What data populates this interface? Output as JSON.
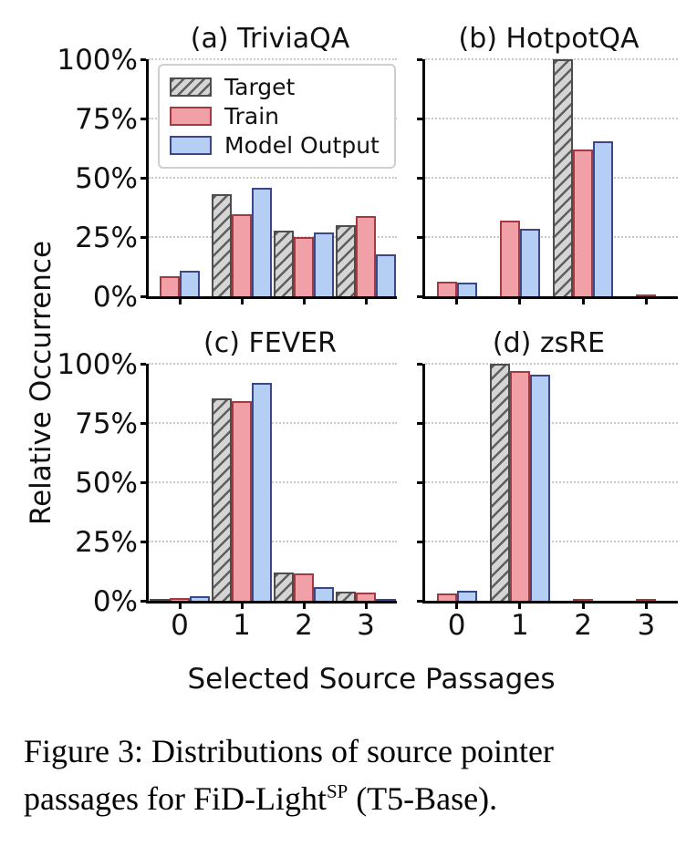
{
  "figure": {
    "ylabel": "Relative Occurrence",
    "xlabel": "Selected Source Passages"
  },
  "legend": {
    "items": [
      {
        "label": "Target"
      },
      {
        "label": "Train"
      },
      {
        "label": "Model Output"
      }
    ]
  },
  "series_styles": {
    "Target": {
      "fill": "#d5d5d5",
      "edge": "#4d4d4d",
      "hatch": "#5f5f5f",
      "hatched": true
    },
    "Train": {
      "fill": "#f0a0a6",
      "edge": "#a23a41",
      "hatched": false
    },
    "Model Output": {
      "fill": "#b4cef4",
      "edge": "#3b4789",
      "hatched": false
    }
  },
  "chart_data": [
    {
      "type": "bar",
      "title": "(a) TriviaQA",
      "categories": [
        "0",
        "1",
        "2",
        "3"
      ],
      "series": [
        {
          "name": "Target",
          "values": [
            0,
            43,
            27.8,
            30
          ]
        },
        {
          "name": "Train",
          "values": [
            8.3,
            34.5,
            25,
            33.8
          ]
        },
        {
          "name": "Model Output",
          "values": [
            10.8,
            45.8,
            27,
            17.5
          ]
        }
      ],
      "ylim": [
        0,
        100
      ],
      "yticks": [
        "0%",
        "25%",
        "50%",
        "75%",
        "100%"
      ],
      "grid": true,
      "legend_position": "upper left",
      "show_yticklabels": true,
      "show_xticklabels": false
    },
    {
      "type": "bar",
      "title": "(b) HotpotQA",
      "categories": [
        "0",
        "1",
        "2",
        "3"
      ],
      "series": [
        {
          "name": "Target",
          "values": [
            0,
            0,
            100,
            0
          ]
        },
        {
          "name": "Train",
          "values": [
            6,
            32,
            62,
            0.5
          ]
        },
        {
          "name": "Model Output",
          "values": [
            5.8,
            28.5,
            65.5,
            0
          ]
        }
      ],
      "ylim": [
        0,
        100
      ],
      "yticks": [
        "0%",
        "25%",
        "50%",
        "75%",
        "100%"
      ],
      "grid": true,
      "show_yticklabels": false,
      "show_xticklabels": false
    },
    {
      "type": "bar",
      "title": "(c) FEVER",
      "categories": [
        "0",
        "1",
        "2",
        "3"
      ],
      "series": [
        {
          "name": "Target",
          "values": [
            0.4,
            85.4,
            11.9,
            3.8
          ]
        },
        {
          "name": "Train",
          "values": [
            1,
            84.3,
            11.5,
            3.5
          ]
        },
        {
          "name": "Model Output",
          "values": [
            1.8,
            92,
            5.9,
            0.5
          ]
        }
      ],
      "ylim": [
        0,
        100
      ],
      "yticks": [
        "0%",
        "25%",
        "50%",
        "75%",
        "100%"
      ],
      "grid": true,
      "show_yticklabels": true,
      "show_xticklabels": true
    },
    {
      "type": "bar",
      "title": "(d) zsRE",
      "categories": [
        "0",
        "1",
        "2",
        "3"
      ],
      "series": [
        {
          "name": "Target",
          "values": [
            0,
            100,
            0,
            0
          ]
        },
        {
          "name": "Train",
          "values": [
            3,
            97,
            0.3,
            0.3
          ]
        },
        {
          "name": "Model Output",
          "values": [
            4.3,
            95.5,
            0,
            0
          ]
        }
      ],
      "ylim": [
        0,
        100
      ],
      "yticks": [
        "0%",
        "25%",
        "50%",
        "75%",
        "100%"
      ],
      "grid": true,
      "show_yticklabels": false,
      "show_xticklabels": true
    }
  ],
  "caption": {
    "line1": "Figure 3: Distributions of source pointer",
    "line2_pre": "passages for FiD-Light",
    "line2_sup": "SP",
    "line2_post": " (T5-Base)."
  }
}
